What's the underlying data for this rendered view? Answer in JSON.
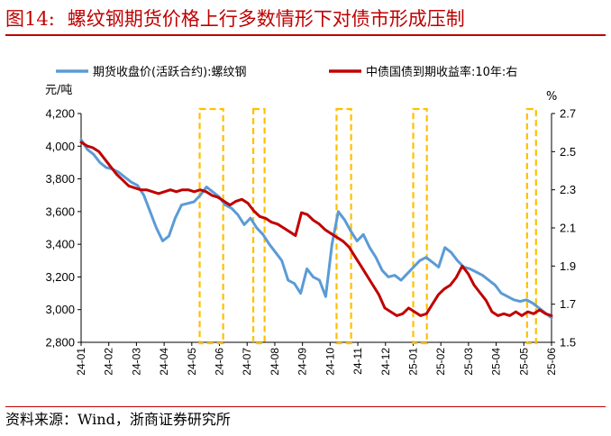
{
  "header": {
    "fig_label": "图14:",
    "title": "螺纹钢期货价格上行多数情形下对债市形成压制"
  },
  "source": "资料来源：Wind，浙商证券研究所",
  "chart_data": {
    "type": "line",
    "left_unit": "元/吨",
    "right_unit": "%",
    "y_left": {
      "min": 2800,
      "max": 4200,
      "ticks": [
        "4,200",
        "4,000",
        "3,800",
        "3,600",
        "3,400",
        "3,200",
        "3,000",
        "2,800"
      ]
    },
    "y_right": {
      "min": 1.5,
      "max": 2.7,
      "ticks": [
        "2.7",
        "2.5",
        "2.3",
        "2.1",
        "1.9",
        "1.7",
        "1.5"
      ]
    },
    "x_ticks": [
      "24-01",
      "24-02",
      "24-03",
      "24-04",
      "24-05",
      "24-06",
      "24-07",
      "24-08",
      "24-09",
      "24-10",
      "24-11",
      "24-12",
      "25-01",
      "25-02",
      "25-03",
      "25-04",
      "25-05",
      "25-06"
    ],
    "series": [
      {
        "name": "期货收盘价(活跃合约):螺纹钢",
        "axis": "left",
        "color": "#5b9bd5",
        "values": [
          4040,
          3980,
          3950,
          3900,
          3870,
          3860,
          3840,
          3810,
          3780,
          3760,
          3700,
          3600,
          3500,
          3420,
          3450,
          3560,
          3640,
          3650,
          3660,
          3700,
          3750,
          3720,
          3690,
          3640,
          3620,
          3580,
          3520,
          3560,
          3500,
          3460,
          3400,
          3350,
          3300,
          3180,
          3160,
          3100,
          3250,
          3200,
          3180,
          3080,
          3400,
          3600,
          3550,
          3480,
          3420,
          3460,
          3380,
          3320,
          3240,
          3200,
          3210,
          3180,
          3220,
          3260,
          3300,
          3320,
          3290,
          3260,
          3380,
          3350,
          3300,
          3260,
          3250,
          3230,
          3210,
          3180,
          3150,
          3100,
          3080,
          3060,
          3050,
          3060,
          3040,
          3010,
          2980,
          2950
        ]
      },
      {
        "name": "中债国债到期收益率:10年:右",
        "axis": "right",
        "color": "#c00000",
        "values": [
          2.55,
          2.53,
          2.52,
          2.5,
          2.46,
          2.42,
          2.38,
          2.35,
          2.32,
          2.31,
          2.3,
          2.3,
          2.29,
          2.28,
          2.29,
          2.3,
          2.29,
          2.3,
          2.3,
          2.29,
          2.3,
          2.29,
          2.27,
          2.26,
          2.24,
          2.22,
          2.24,
          2.25,
          2.23,
          2.19,
          2.16,
          2.15,
          2.13,
          2.12,
          2.1,
          2.08,
          2.06,
          2.18,
          2.17,
          2.14,
          2.12,
          2.09,
          2.07,
          2.05,
          2.03,
          2.0,
          1.95,
          1.9,
          1.85,
          1.8,
          1.75,
          1.68,
          1.66,
          1.64,
          1.65,
          1.68,
          1.66,
          1.64,
          1.65,
          1.7,
          1.75,
          1.78,
          1.8,
          1.84,
          1.9,
          1.86,
          1.8,
          1.76,
          1.72,
          1.66,
          1.64,
          1.65,
          1.64,
          1.66,
          1.64,
          1.66,
          1.65,
          1.67,
          1.65,
          1.64
        ]
      }
    ],
    "highlight_ranges": [
      {
        "from": 0.252,
        "to": 0.302
      },
      {
        "from": 0.366,
        "to": 0.39
      },
      {
        "from": 0.543,
        "to": 0.574
      },
      {
        "from": 0.706,
        "to": 0.735
      },
      {
        "from": 0.948,
        "to": 0.967
      }
    ]
  }
}
